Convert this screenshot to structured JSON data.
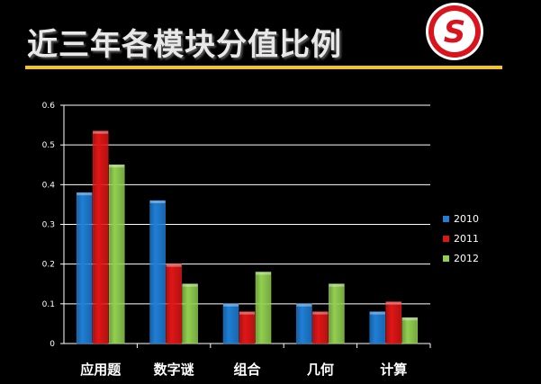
{
  "slide": {
    "title": "近三年各模块分值比例",
    "logo_letter": "S"
  },
  "colors": {
    "background": "#000000",
    "rule": "#f5c518",
    "series_2010": "#1f7fd6",
    "series_2011": "#e01616",
    "series_2012": "#92d050",
    "logo_red": "#d9141c"
  },
  "chart_data": {
    "type": "bar",
    "categories": [
      "应用题",
      "数字谜",
      "组合",
      "几何",
      "计算"
    ],
    "series": [
      {
        "name": "2010",
        "values": [
          0.38,
          0.36,
          0.1,
          0.1,
          0.08
        ]
      },
      {
        "name": "2011",
        "values": [
          0.535,
          0.2,
          0.08,
          0.08,
          0.105
        ]
      },
      {
        "name": "2012",
        "values": [
          0.45,
          0.15,
          0.18,
          0.15,
          0.065
        ]
      }
    ],
    "ylim": [
      0,
      0.6
    ],
    "yticks": [
      "0",
      "0.1",
      "0.2",
      "0.3",
      "0.4",
      "0.5",
      "0.6"
    ],
    "grid": true,
    "legend": "right"
  }
}
